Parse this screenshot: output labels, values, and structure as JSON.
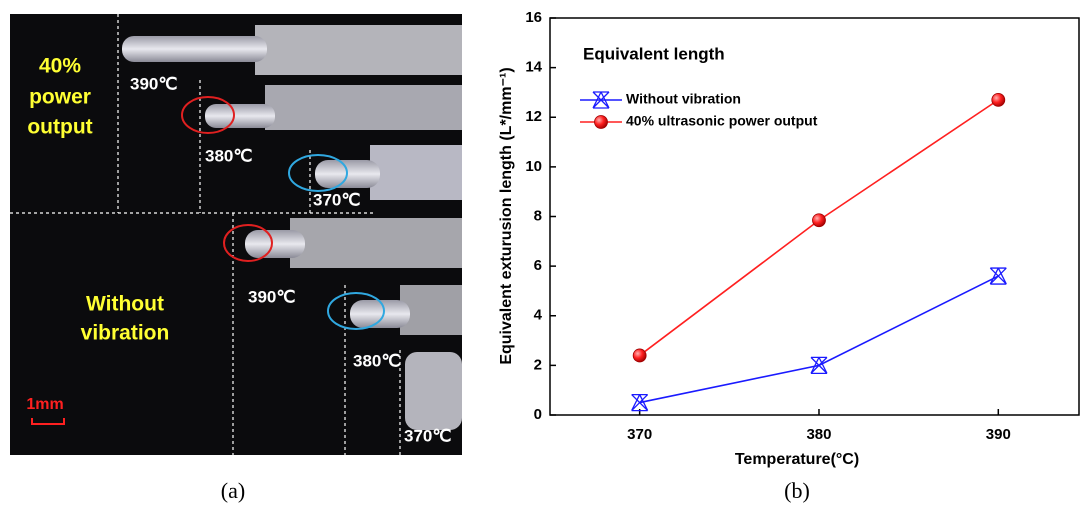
{
  "photo": {
    "power_label": [
      "40%",
      "power",
      "output"
    ],
    "without_label": [
      "Without",
      "vibration"
    ],
    "temps": [
      "390℃",
      "380℃",
      "370℃",
      "390℃",
      "380℃",
      "370℃"
    ],
    "scale": "1mm"
  },
  "captions": [
    "(a)",
    "(b)"
  ],
  "chart_data": {
    "type": "line",
    "title": "Equivalent length",
    "xlabel": "Temperature(°C)",
    "ylabel": "Equivalent exturusion length (L*/mm⁻¹)",
    "x": [
      370,
      380,
      390
    ],
    "series": [
      {
        "name": "Without vibration",
        "color": "#1a1aff",
        "values": [
          0.5,
          2.0,
          5.6
        ]
      },
      {
        "name": "40% ultrasonic power output",
        "color": "#ff2020",
        "values": [
          2.4,
          7.85,
          12.7
        ]
      }
    ],
    "xlim": [
      365,
      394.5
    ],
    "xticks": [
      370,
      380,
      390
    ],
    "ylim": [
      0,
      16
    ],
    "yticks": [
      0,
      2,
      4,
      6,
      8,
      10,
      12,
      14,
      16
    ],
    "legend": "upper-left"
  }
}
